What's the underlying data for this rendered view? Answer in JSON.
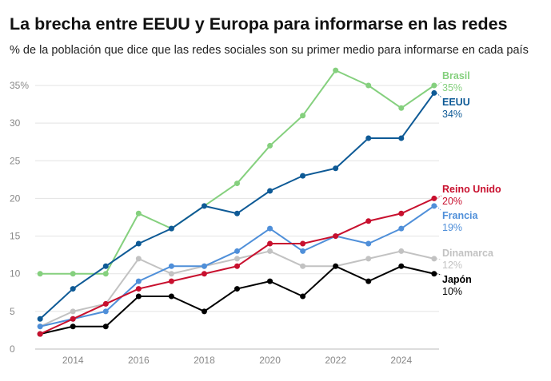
{
  "header": {
    "title": "La brecha entre EEUU y Europa para informarse en las redes",
    "subtitle": "% de la población que dice que las redes sociales son su primer medio para informarse en cada país"
  },
  "chart_data": {
    "type": "line",
    "title": "La brecha entre EEUU y Europa para informarse en las redes",
    "subtitle": "% de la población que dice que las redes sociales son su primer medio para informarse en cada país",
    "xlabel": "",
    "ylabel": "",
    "x": [
      2013,
      2014,
      2015,
      2016,
      2017,
      2018,
      2019,
      2020,
      2021,
      2022,
      2023,
      2024,
      2025
    ],
    "xlim": [
      2012.85,
      2025.15
    ],
    "ylim": [
      0,
      35
    ],
    "x_ticks": [
      2014,
      2016,
      2018,
      2020,
      2022,
      2024
    ],
    "y_ticks": [
      0,
      5,
      10,
      15,
      20,
      25,
      30,
      35
    ],
    "y_tick_labels": [
      "0",
      "5",
      "10",
      "15",
      "20",
      "25",
      "30",
      "35%"
    ],
    "grid": "horizontal",
    "legend": "direct labels at line ends (right)",
    "series": [
      {
        "name": "Dinamarca",
        "value_label": "12%",
        "color": "#c2c2c2",
        "values": [
          3,
          5,
          6,
          12,
          10,
          11,
          12,
          13,
          11,
          11,
          12,
          13,
          12
        ]
      },
      {
        "name": "Francia",
        "value_label": "19%",
        "color": "#4f8fd9",
        "values": [
          3,
          4,
          5,
          9,
          11,
          11,
          13,
          16,
          13,
          15,
          14,
          16,
          19
        ]
      },
      {
        "name": "Brasil",
        "value_label": "35%",
        "color": "#85d07e",
        "values": [
          10,
          10,
          10,
          18,
          16,
          null,
          22,
          27,
          31,
          37,
          35,
          32,
          35
        ]
      },
      {
        "name": "Japón",
        "value_label": "10%",
        "color": "#000000",
        "values": [
          2,
          3,
          3,
          7,
          7,
          5,
          8,
          9,
          7,
          11,
          9,
          11,
          10
        ]
      },
      {
        "name": "Reino Unido",
        "value_label": "20%",
        "color": "#c8102e",
        "values": [
          2,
          4,
          6,
          8,
          9,
          10,
          11,
          14,
          14,
          15,
          17,
          18,
          20
        ]
      },
      {
        "name": "EEUU",
        "value_label": "34%",
        "color": "#0e5a96",
        "values": [
          4,
          8,
          11,
          14,
          16,
          19,
          18,
          21,
          23,
          24,
          28,
          28,
          34
        ]
      }
    ]
  }
}
